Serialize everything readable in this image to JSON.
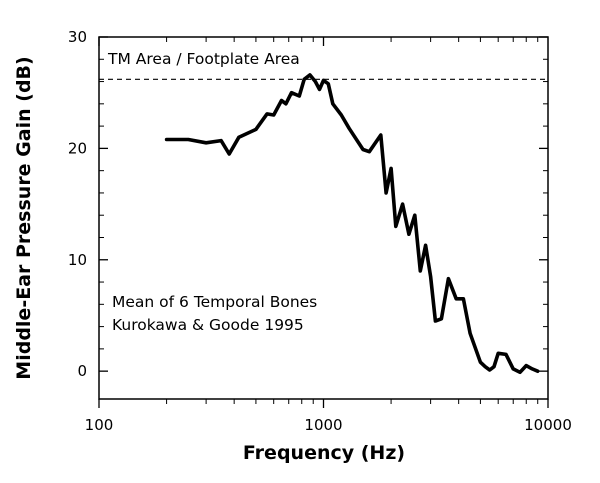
{
  "chart_data": {
    "type": "line",
    "title": "",
    "xlabel": "Frequency (Hz)",
    "ylabel": "Middle-Ear Pressure Gain (dB)",
    "x_scale": "log",
    "xlim": [
      100,
      10000
    ],
    "ylim": [
      -2.5,
      30
    ],
    "x_ticks": [
      100,
      1000,
      10000
    ],
    "x_tick_labels": [
      "100",
      "1000",
      "10000"
    ],
    "y_ticks": [
      0,
      10,
      20,
      30
    ],
    "y_tick_labels": [
      "0",
      "10",
      "20",
      "30"
    ],
    "grid": false,
    "reference_line": {
      "label": "TM Area / Footplate Area",
      "y": 26.2,
      "style": "dashed"
    },
    "annotations": [
      "Mean of 6 Temporal Bones",
      "Kurokawa & Goode 1995"
    ],
    "series": [
      {
        "x": [
          200,
          250,
          300,
          350,
          380,
          420,
          500,
          560,
          600,
          650,
          680,
          720,
          780,
          820,
          870,
          920,
          960,
          1000,
          1050,
          1100,
          1200,
          1300,
          1500,
          1600,
          1800,
          1900,
          2000,
          2100,
          2250,
          2400,
          2550,
          2700,
          2850,
          3000,
          3150,
          3350,
          3600,
          3900,
          4200,
          4500,
          5000,
          5250,
          5500,
          5750,
          6000,
          6500,
          7000,
          7500,
          8000,
          8500,
          9000
        ],
        "y": [
          20.8,
          20.8,
          20.5,
          20.7,
          19.5,
          21.0,
          21.7,
          23.1,
          23.0,
          24.3,
          24.0,
          25.0,
          24.7,
          26.2,
          26.6,
          26.0,
          25.3,
          26.1,
          25.8,
          24.0,
          23.0,
          21.8,
          19.9,
          19.7,
          21.2,
          16.0,
          18.2,
          13.0,
          15.0,
          12.3,
          14.0,
          9.0,
          11.3,
          8.5,
          4.5,
          4.7,
          8.3,
          6.5,
          6.5,
          3.4,
          0.8,
          0.4,
          0.1,
          0.4,
          1.6,
          1.5,
          0.2,
          -0.1,
          0.5,
          0.2,
          0.0
        ]
      }
    ]
  }
}
